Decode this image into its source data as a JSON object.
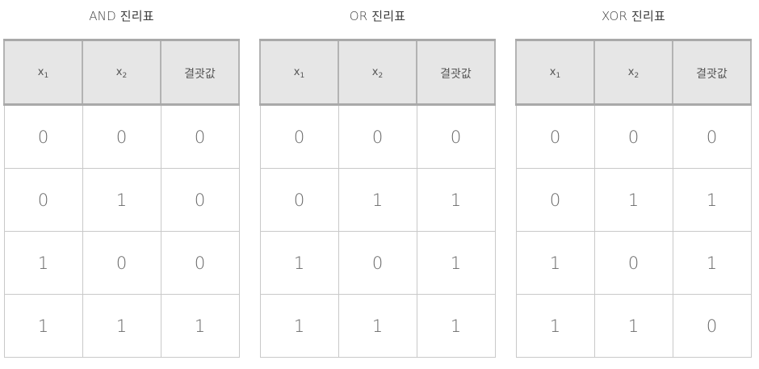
{
  "column_headers": {
    "x1_base": "x",
    "x1_sub": "1",
    "x2_base": "x",
    "x2_sub": "2",
    "result": "결괏값"
  },
  "tables": [
    {
      "title": "AND 진리표",
      "rows": [
        [
          "0",
          "0",
          "0"
        ],
        [
          "0",
          "1",
          "0"
        ],
        [
          "1",
          "0",
          "0"
        ],
        [
          "1",
          "1",
          "1"
        ]
      ]
    },
    {
      "title": "OR 진리표",
      "rows": [
        [
          "0",
          "0",
          "0"
        ],
        [
          "0",
          "1",
          "1"
        ],
        [
          "1",
          "0",
          "1"
        ],
        [
          "1",
          "1",
          "1"
        ]
      ]
    },
    {
      "title": "XOR 진리표",
      "rows": [
        [
          "0",
          "0",
          "0"
        ],
        [
          "0",
          "1",
          "1"
        ],
        [
          "1",
          "0",
          "1"
        ],
        [
          "1",
          "1",
          "0"
        ]
      ]
    }
  ]
}
